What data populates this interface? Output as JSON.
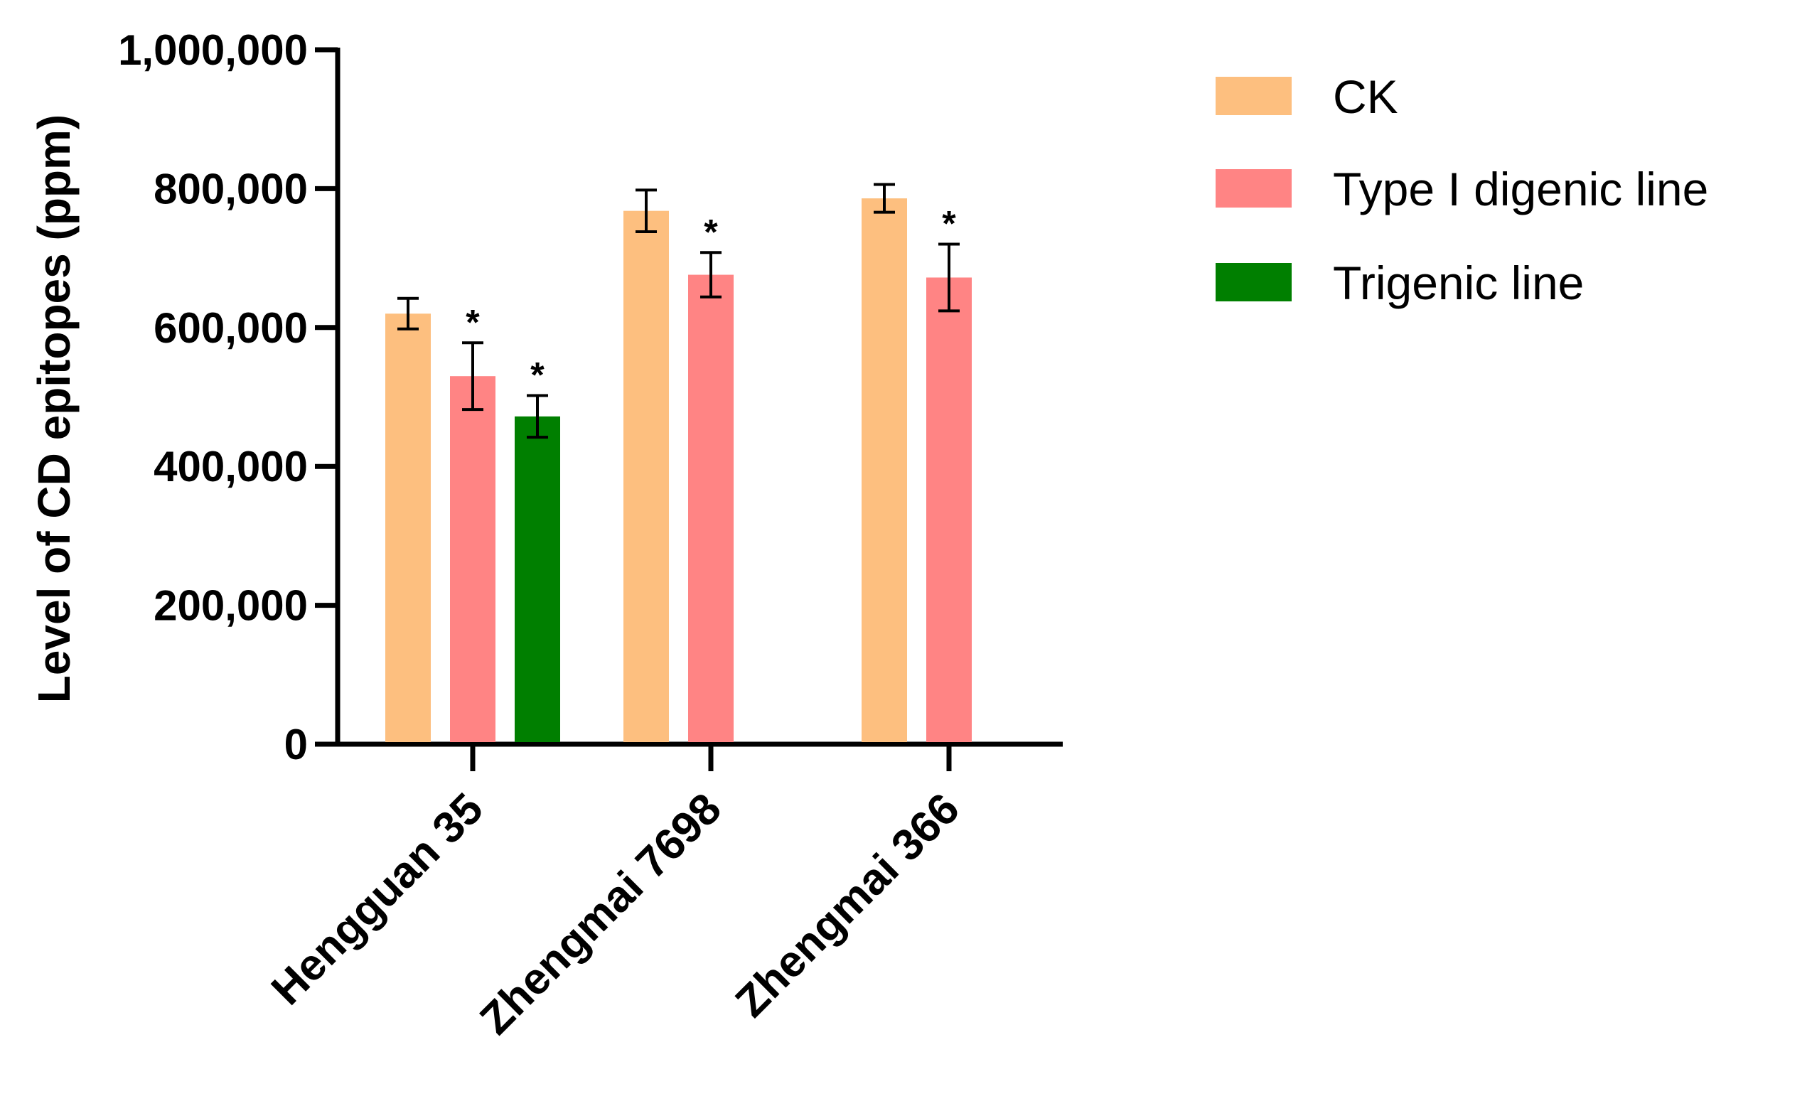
{
  "chart_data": {
    "type": "bar",
    "title": "",
    "xlabel": "",
    "ylabel": "Level of CD epitopes (ppm)",
    "ylim": [
      0,
      1000000
    ],
    "yticks": [
      0,
      200000,
      400000,
      600000,
      800000,
      1000000
    ],
    "ytick_labels": [
      "0",
      "200,000",
      "400,000",
      "600,000",
      "800,000",
      "1,000,000"
    ],
    "categories": [
      "Hengguan 35",
      "Zhengmai 7698",
      "Zhengmai 366"
    ],
    "series": [
      {
        "name": "CK",
        "color": "#FDBF7F",
        "values": [
          620000,
          768000,
          786000
        ],
        "errors": [
          22000,
          30000,
          20000
        ],
        "significance": [
          "",
          "",
          ""
        ]
      },
      {
        "name": "Type I digenic line",
        "color": "#FF8484",
        "values": [
          530000,
          676000,
          672000
        ],
        "errors": [
          48000,
          32000,
          48000
        ],
        "significance": [
          "*",
          "*",
          "*"
        ]
      },
      {
        "name": "Trigenic line",
        "color": "#007F00",
        "values": [
          472000,
          null,
          null
        ],
        "errors": [
          30000,
          null,
          null
        ],
        "significance": [
          "*",
          "",
          ""
        ]
      }
    ],
    "legend_position": "right-top",
    "grid": false
  }
}
